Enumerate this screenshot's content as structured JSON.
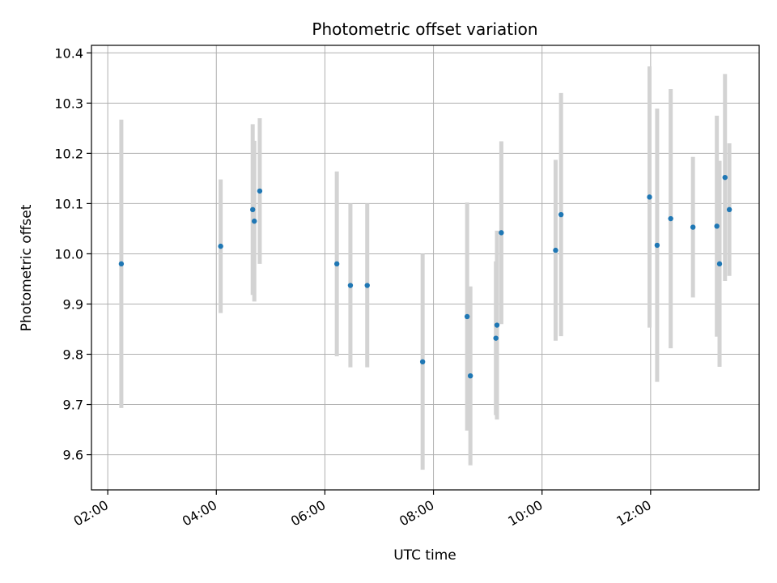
{
  "chart_data": {
    "type": "scatter",
    "title": "Photometric offset variation",
    "xlabel": "UTC time",
    "ylabel": "Photometric offset",
    "x_unit": "hours",
    "xlim": [
      1.7,
      14.0
    ],
    "ylim": [
      9.53,
      10.415
    ],
    "x_ticks": [
      2,
      4,
      6,
      8,
      10,
      12
    ],
    "x_tick_labels": [
      "02:00",
      "04:00",
      "06:00",
      "08:00",
      "10:00",
      "12:00"
    ],
    "y_ticks": [
      9.6,
      9.7,
      9.8,
      9.9,
      10.0,
      10.1,
      10.2,
      10.3,
      10.4
    ],
    "y_tick_labels": [
      "9.6",
      "9.7",
      "9.8",
      "9.9",
      "10.0",
      "10.1",
      "10.2",
      "10.3",
      "10.4"
    ],
    "grid": true,
    "legend": "none",
    "point_color": "#1f77b4",
    "errorbar_color": "#d3d3d3",
    "points": [
      {
        "x": 2.25,
        "y": 9.98,
        "err": 0.287
      },
      {
        "x": 4.08,
        "y": 10.015,
        "err": 0.133
      },
      {
        "x": 4.67,
        "y": 10.088,
        "err": 0.17
      },
      {
        "x": 4.7,
        "y": 10.065,
        "err": 0.16
      },
      {
        "x": 4.8,
        "y": 10.125,
        "err": 0.145
      },
      {
        "x": 6.22,
        "y": 9.98,
        "err": 0.184
      },
      {
        "x": 6.47,
        "y": 9.937,
        "err": 0.163
      },
      {
        "x": 6.78,
        "y": 9.937,
        "err": 0.163
      },
      {
        "x": 7.8,
        "y": 9.785,
        "err": 0.215
      },
      {
        "x": 8.62,
        "y": 9.875,
        "err": 0.227
      },
      {
        "x": 8.68,
        "y": 9.757,
        "err": 0.178
      },
      {
        "x": 9.15,
        "y": 9.832,
        "err": 0.153
      },
      {
        "x": 9.17,
        "y": 9.858,
        "err": 0.188
      },
      {
        "x": 9.25,
        "y": 10.042,
        "err": 0.182
      },
      {
        "x": 10.25,
        "y": 10.007,
        "err": 0.18
      },
      {
        "x": 10.35,
        "y": 10.078,
        "err": 0.242
      },
      {
        "x": 11.98,
        "y": 10.113,
        "err": 0.26
      },
      {
        "x": 12.12,
        "y": 10.017,
        "err": 0.272
      },
      {
        "x": 12.37,
        "y": 10.07,
        "err": 0.258
      },
      {
        "x": 12.78,
        "y": 10.053,
        "err": 0.14
      },
      {
        "x": 13.22,
        "y": 10.055,
        "err": 0.22
      },
      {
        "x": 13.27,
        "y": 9.98,
        "err": 0.205
      },
      {
        "x": 13.37,
        "y": 10.152,
        "err": 0.206
      },
      {
        "x": 13.45,
        "y": 10.088,
        "err": 0.132
      }
    ]
  }
}
